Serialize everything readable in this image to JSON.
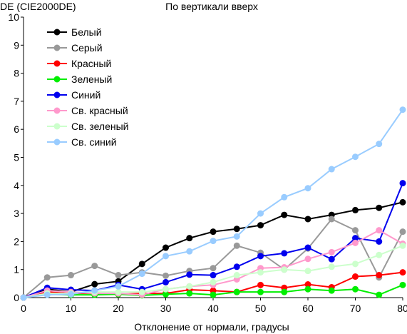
{
  "chart_data": {
    "type": "line",
    "title": "По вертикали вверх",
    "xlabel": "Отклонение от нормали, градусы",
    "ylabel": "DE (CIE2000DE)",
    "xlim": [
      0,
      80
    ],
    "ylim": [
      0,
      10
    ],
    "xticks": [
      0,
      10,
      20,
      30,
      40,
      50,
      60,
      70,
      80
    ],
    "yticks": [
      0,
      1,
      2,
      3,
      4,
      5,
      6,
      7,
      8,
      9,
      10
    ],
    "grid": false,
    "legend_position": "top-left",
    "x": [
      0,
      5,
      10,
      15,
      20,
      25,
      30,
      35,
      40,
      45,
      50,
      55,
      60,
      65,
      70,
      75,
      80
    ],
    "series": [
      {
        "name": "Белый",
        "color": "#000000",
        "values": [
          0,
          0.3,
          0.2,
          0.48,
          0.58,
          1.2,
          1.78,
          2.12,
          2.35,
          2.45,
          2.58,
          2.95,
          2.8,
          2.95,
          3.12,
          3.2,
          3.4
        ]
      },
      {
        "name": "Серый",
        "color": "#999999",
        "values": [
          0,
          0.72,
          0.8,
          1.13,
          0.8,
          0.9,
          0.78,
          0.95,
          1.05,
          1.85,
          1.6,
          1.0,
          1.75,
          2.8,
          2.4,
          0.72,
          2.35
        ]
      },
      {
        "name": "Красный",
        "color": "#ff0000",
        "values": [
          0,
          0.2,
          0.15,
          0.15,
          0.12,
          0.15,
          0.15,
          0.28,
          0.25,
          0.2,
          0.45,
          0.35,
          0.47,
          0.37,
          0.75,
          0.8,
          0.9
        ]
      },
      {
        "name": "Зеленый",
        "color": "#00ee00",
        "values": [
          0,
          0.12,
          0.1,
          0.1,
          0.12,
          0.08,
          0.12,
          0.15,
          0.1,
          0.2,
          0.2,
          0.2,
          0.3,
          0.25,
          0.3,
          0.1,
          0.45
        ]
      },
      {
        "name": "Синий",
        "color": "#0000ee",
        "values": [
          0,
          0.35,
          0.28,
          0.25,
          0.45,
          0.3,
          0.55,
          0.82,
          0.8,
          1.1,
          1.48,
          1.58,
          1.78,
          1.37,
          2.12,
          2.0,
          4.08
        ]
      },
      {
        "name": "Св. красный",
        "color": "#ff99cc",
        "values": [
          0,
          0.25,
          0.2,
          0.15,
          0.15,
          0.1,
          0.3,
          0.4,
          0.45,
          0.65,
          1.05,
          1.08,
          1.38,
          1.62,
          1.95,
          2.4,
          1.92
        ]
      },
      {
        "name": "Св. зеленый",
        "color": "#ccffcc",
        "values": [
          0,
          0.15,
          0.15,
          0.2,
          0.2,
          0.2,
          0.3,
          0.4,
          0.55,
          0.8,
          0.9,
          1.0,
          0.95,
          1.1,
          1.2,
          1.52,
          1.85
        ]
      },
      {
        "name": "Св. синий",
        "color": "#99ccff",
        "values": [
          0,
          0.1,
          0.12,
          0.25,
          0.4,
          0.85,
          1.48,
          1.65,
          2.02,
          2.18,
          3.0,
          3.58,
          3.9,
          4.58,
          5.02,
          5.48,
          6.7
        ]
      }
    ]
  }
}
